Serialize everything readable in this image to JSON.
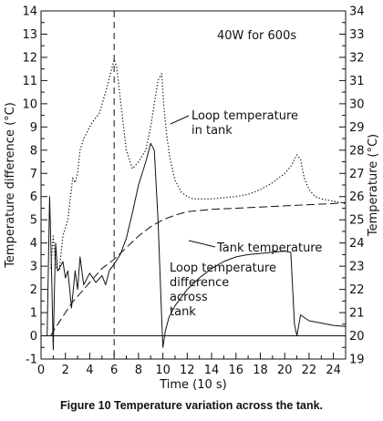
{
  "caption": "Figure 10 Temperature variation across the tank.",
  "chart_data": {
    "type": "line",
    "annotation_power": "40W for 600s",
    "xlabel": "Time (10 s)",
    "ylabel_left": "Temperature difference (°C)",
    "ylabel_right": "Temperature (°C)",
    "xlim": [
      0,
      25
    ],
    "ylim_left": [
      -1,
      14
    ],
    "ylim_right": [
      19,
      34
    ],
    "x_ticks": [
      0,
      2,
      4,
      6,
      8,
      10,
      12,
      14,
      16,
      18,
      20,
      22,
      24
    ],
    "y_left_ticks": [
      -1,
      0,
      1,
      2,
      3,
      4,
      5,
      6,
      7,
      8,
      9,
      10,
      11,
      12,
      13,
      14
    ],
    "y_right_ticks": [
      19,
      20,
      21,
      22,
      23,
      24,
      25,
      26,
      27,
      28,
      29,
      30,
      31,
      32,
      33,
      34
    ],
    "vline_x": 6,
    "series": [
      {
        "name": "Loop temperature in tank",
        "axis": "right",
        "style": "dotted",
        "label_lines": [
          "Loop temperature",
          "in tank"
        ],
        "x": [
          0.8,
          1.0,
          1.2,
          1.5,
          1.8,
          2.2,
          2.6,
          2.8,
          3.0,
          3.2,
          3.5,
          3.8,
          4.2,
          4.8,
          5.3,
          5.8,
          6.0,
          6.2,
          6.6,
          7.0,
          7.5,
          8.0,
          8.6,
          9.0,
          9.3,
          9.6,
          9.9,
          10.1,
          10.3,
          10.6,
          11.0,
          11.5,
          12.0,
          12.5,
          13.0,
          14.0,
          15.0,
          16.0,
          17.0,
          18.0,
          19.0,
          20.0,
          20.5,
          21.0,
          21.3,
          21.6,
          22.0,
          22.5,
          23.0,
          24.0,
          25.0
        ],
        "y": [
          22.9,
          24.3,
          23.0,
          22.8,
          24.3,
          25.0,
          26.8,
          26.6,
          27.0,
          28.0,
          28.5,
          28.8,
          29.2,
          29.6,
          30.5,
          31.5,
          31.9,
          31.6,
          29.8,
          28.0,
          27.2,
          27.5,
          28.0,
          29.0,
          30.0,
          31.0,
          31.3,
          29.8,
          28.7,
          27.6,
          26.7,
          26.2,
          26.0,
          25.9,
          25.9,
          25.9,
          25.95,
          26.0,
          26.1,
          26.3,
          26.6,
          27.0,
          27.3,
          27.8,
          27.6,
          26.8,
          26.3,
          26.0,
          25.9,
          25.8,
          25.7
        ]
      },
      {
        "name": "Tank temperature",
        "axis": "right",
        "style": "long-dash",
        "label_lines": [
          "Tank temperature"
        ],
        "x": [
          0.8,
          1.0,
          1.5,
          2.0,
          2.5,
          3.0,
          3.5,
          4.0,
          4.5,
          5.0,
          5.5,
          6.0,
          7.0,
          8.0,
          9.0,
          10.0,
          11.0,
          12.0,
          13.0,
          14.0,
          16.0,
          18.0,
          20.0,
          22.0,
          24.0,
          25.0
        ],
        "y": [
          20.0,
          20.2,
          20.6,
          21.0,
          21.4,
          21.7,
          22.0,
          22.3,
          22.6,
          22.9,
          23.1,
          23.3,
          23.8,
          24.3,
          24.7,
          25.0,
          25.2,
          25.35,
          25.4,
          25.45,
          25.5,
          25.55,
          25.6,
          25.65,
          25.7,
          25.75
        ]
      },
      {
        "name": "Loop temperature difference across tank",
        "axis": "left",
        "style": "solid",
        "label_lines": [
          "Loop temperature",
          "difference",
          "across",
          "tank"
        ],
        "x": [
          0.5,
          0.7,
          0.85,
          1.0,
          1.1,
          1.2,
          1.35,
          1.5,
          1.8,
          2.0,
          2.2,
          2.5,
          2.8,
          3.0,
          3.2,
          3.5,
          4.0,
          4.5,
          5.0,
          5.3,
          5.6,
          6.0,
          6.5,
          7.0,
          7.5,
          8.0,
          8.6,
          9.0,
          9.3,
          9.6,
          9.85,
          10.0,
          10.2,
          10.5,
          11.0,
          12.0,
          13.0,
          14.0,
          15.0,
          16.0,
          17.0,
          18.0,
          19.0,
          20.0,
          20.5,
          20.8,
          21.0,
          21.3,
          22.0,
          23.0,
          24.0,
          25.0
        ],
        "y": [
          0.0,
          6.0,
          3.0,
          -0.6,
          2.0,
          4.0,
          2.8,
          2.9,
          3.2,
          2.5,
          2.8,
          1.2,
          2.8,
          2.0,
          3.4,
          2.2,
          2.7,
          2.3,
          2.6,
          2.2,
          2.8,
          3.1,
          3.5,
          4.2,
          5.3,
          6.5,
          7.5,
          8.3,
          8.0,
          5.0,
          1.5,
          -0.5,
          0.2,
          0.8,
          1.3,
          2.0,
          2.5,
          2.9,
          3.2,
          3.4,
          3.5,
          3.55,
          3.6,
          3.65,
          3.6,
          0.5,
          0.0,
          0.9,
          0.65,
          0.55,
          0.45,
          0.4
        ]
      }
    ]
  }
}
